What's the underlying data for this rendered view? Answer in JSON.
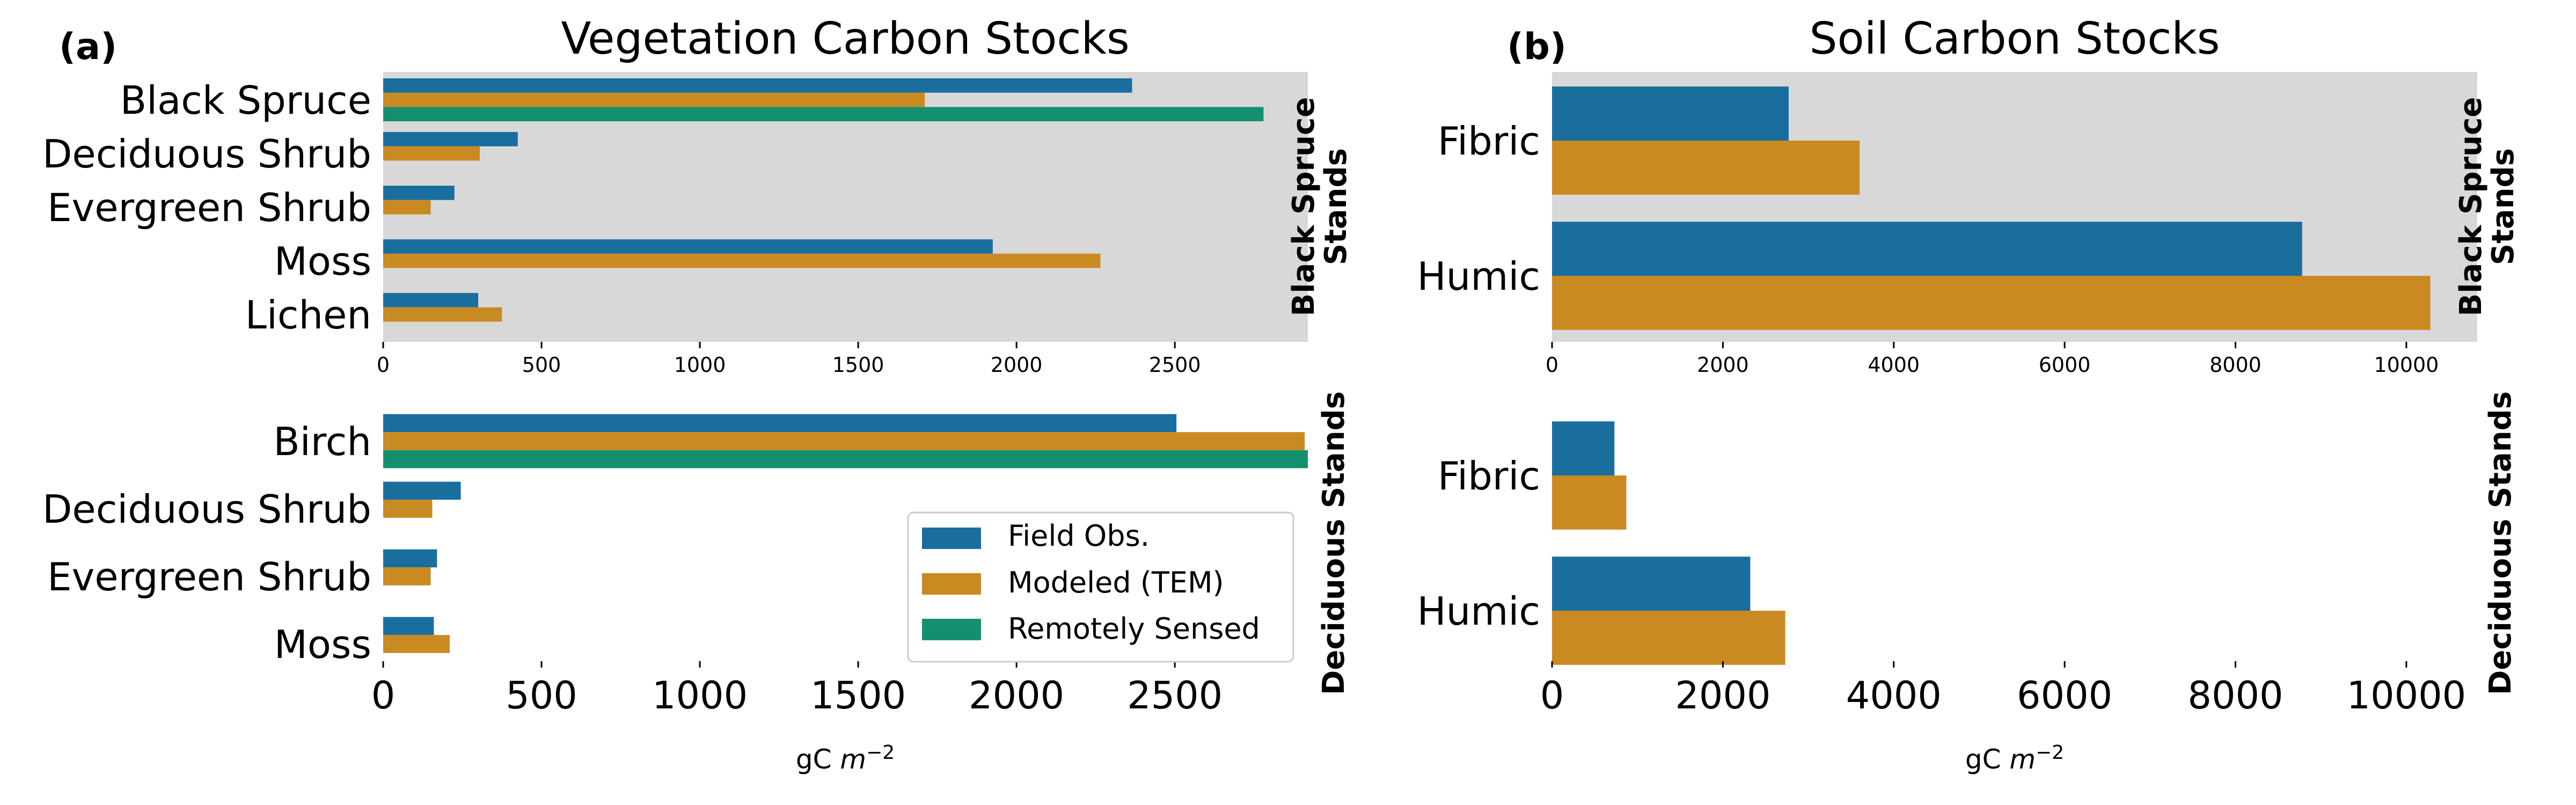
{
  "panel_labels": {
    "a": "(a)",
    "b": "(b)"
  },
  "titles": {
    "vegetation": "Vegetation Carbon Stocks",
    "soil": "Soil Carbon Stocks"
  },
  "row_labels": {
    "black_spruce": "Black Spruce\nStands",
    "deciduous": "Deciduous Stands"
  },
  "xlabel_parts": {
    "base": "gC ",
    "unit": "m",
    "exp": "−2"
  },
  "legend": [
    "Field Obs.",
    "Modeled (TEM)",
    "Remotely Sensed"
  ],
  "colors": {
    "field": "#1a6e9e",
    "modeled": "#c98a21",
    "remote": "#15906f",
    "panel_bg": "#d8d8d8"
  },
  "chart_data": [
    {
      "id": "veg-black-spruce",
      "type": "bar",
      "orientation": "horizontal",
      "categories": [
        "Black Spruce",
        "Deciduous Shrub",
        "Evergreen Shrub",
        "Moss",
        "Lichen"
      ],
      "series": [
        {
          "name": "Field Obs.",
          "values": [
            2365,
            425,
            225,
            1925,
            300
          ]
        },
        {
          "name": "Modeled (TEM)",
          "values": [
            1710,
            305,
            150,
            2265,
            375
          ]
        },
        {
          "name": "Remotely Sensed",
          "values": [
            2780,
            null,
            null,
            null,
            null
          ]
        }
      ],
      "xlim": [
        0,
        2920
      ],
      "xticks": [
        0,
        500,
        1000,
        1500,
        2000,
        2500
      ],
      "background": "gray"
    },
    {
      "id": "veg-deciduous",
      "type": "bar",
      "orientation": "horizontal",
      "categories": [
        "Birch",
        "Deciduous Shrub",
        "Evergreen Shrub",
        "Moss"
      ],
      "series": [
        {
          "name": "Field Obs.",
          "values": [
            2505,
            245,
            170,
            160
          ]
        },
        {
          "name": "Modeled (TEM)",
          "values": [
            2910,
            155,
            150,
            210
          ]
        },
        {
          "name": "Remotely Sensed",
          "values": [
            2920,
            null,
            null,
            null
          ]
        }
      ],
      "xlim": [
        0,
        2920
      ],
      "xticks": [
        0,
        500,
        1000,
        1500,
        2000,
        2500
      ],
      "xlabel": "gC m^-2",
      "legend_position": "lower-right"
    },
    {
      "id": "soil-black-spruce",
      "type": "bar",
      "orientation": "horizontal",
      "categories": [
        "Fibric",
        "Humic"
      ],
      "series": [
        {
          "name": "Field Obs.",
          "values": [
            2770,
            8780
          ]
        },
        {
          "name": "Modeled (TEM)",
          "values": [
            3600,
            10280
          ]
        }
      ],
      "xlim": [
        0,
        10830
      ],
      "xticks": [
        0,
        2000,
        4000,
        6000,
        8000,
        10000
      ],
      "background": "gray"
    },
    {
      "id": "soil-deciduous",
      "type": "bar",
      "orientation": "horizontal",
      "categories": [
        "Fibric",
        "Humic"
      ],
      "series": [
        {
          "name": "Field Obs.",
          "values": [
            730,
            2320
          ]
        },
        {
          "name": "Modeled (TEM)",
          "values": [
            870,
            2730
          ]
        }
      ],
      "xlim": [
        0,
        10830
      ],
      "xticks": [
        0,
        2000,
        4000,
        6000,
        8000,
        10000
      ],
      "xlabel": "gC m^-2"
    }
  ]
}
